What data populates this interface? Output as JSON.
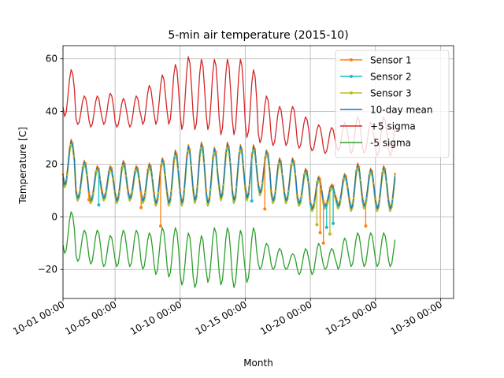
{
  "chart_data": {
    "type": "line",
    "title": "5-min air temperature (2015-10)",
    "xlabel": "Month",
    "ylabel": "Temperature [C]",
    "xlim": [
      "2015-10-01T00:00",
      "2015-10-31T00:00"
    ],
    "ylim": [
      -31,
      65
    ],
    "y_ticks": [
      -20,
      0,
      20,
      40,
      60
    ],
    "x_ticks": [
      "2015-10-01T00:00",
      "2015-10-05T00:00",
      "2015-10-10T00:00",
      "2015-10-15T00:00",
      "2015-10-20T00:00",
      "2015-10-25T00:00",
      "2015-10-30T00:00"
    ],
    "x_tick_labels": [
      "10-01 00:00",
      "10-05 00:00",
      "10-10 00:00",
      "10-15 00:00",
      "10-20 00:00",
      "10-25 00:00",
      "10-30 00:00"
    ],
    "grid": true,
    "legend_position": "top-right",
    "series_style_defaults": {
      "sampled_every_hours": 3
    },
    "series": [
      {
        "name": "Sensor 1",
        "color": "#ff7f0e",
        "marker": "circle",
        "spikes": [
          [
            "2015-10-03T00:00",
            6.5
          ],
          [
            "2015-10-07T00:00",
            3.5
          ],
          [
            "2015-10-08T12:00",
            -3.5
          ],
          [
            "2015-10-16T12:00",
            3
          ],
          [
            "2015-10-20T18:00",
            -6
          ],
          [
            "2015-10-21T00:00",
            -10
          ],
          [
            "2015-10-24T06:00",
            -3.5
          ]
        ]
      },
      {
        "name": "Sensor 2",
        "color": "#17becf",
        "marker": "circle",
        "spikes": [
          [
            "2015-10-03T18:00",
            4.5
          ],
          [
            "2015-10-15T12:00",
            6
          ],
          [
            "2015-10-21T06:00",
            -4
          ],
          [
            "2015-10-21T18:00",
            -2.5
          ]
        ]
      },
      {
        "name": "Sensor 3",
        "color": "#bcbd22",
        "marker": "circle",
        "spikes": [
          [
            "2015-10-20T12:00",
            -3
          ],
          [
            "2015-10-21T12:00",
            -6.5
          ]
        ]
      },
      {
        "name": "10-day mean",
        "color": "#1f77b4",
        "marker": "none",
        "spikes": []
      },
      {
        "name": "+5 sigma",
        "color": "#d62728",
        "marker": "none",
        "spikes": []
      },
      {
        "name": "-5 sigma",
        "color": "#2ca02c",
        "marker": "none",
        "spikes": []
      }
    ],
    "daily_profile": {
      "dates": [
        "2015-10-01",
        "2015-10-02",
        "2015-10-03",
        "2015-10-04",
        "2015-10-05",
        "2015-10-06",
        "2015-10-07",
        "2015-10-08",
        "2015-10-09",
        "2015-10-10",
        "2015-10-11",
        "2015-10-12",
        "2015-10-13",
        "2015-10-14",
        "2015-10-15",
        "2015-10-16",
        "2015-10-17",
        "2015-10-18",
        "2015-10-19",
        "2015-10-20",
        "2015-10-21",
        "2015-10-22",
        "2015-10-23",
        "2015-10-24",
        "2015-10-25"
      ],
      "sensor_high": [
        29,
        21,
        19,
        19,
        21,
        19,
        20,
        22,
        25,
        27,
        28,
        26,
        28,
        27,
        27,
        25,
        22,
        22,
        18,
        15,
        12,
        16,
        20,
        18,
        19
      ],
      "sensor_low": [
        12,
        7,
        6,
        7,
        6,
        7,
        6,
        5,
        5,
        5,
        6,
        5,
        7,
        6,
        7,
        9,
        6,
        6,
        5,
        3,
        4,
        4,
        3,
        4,
        3
      ],
      "upper_high": [
        56,
        46,
        46,
        47,
        45,
        46,
        50,
        54,
        58,
        61,
        60,
        60,
        60,
        60,
        56,
        46,
        42,
        42,
        38,
        35,
        34,
        36,
        38,
        36,
        38
      ],
      "upper_low": [
        38,
        35,
        34,
        35,
        34,
        34,
        35,
        35,
        35,
        33,
        33,
        33,
        31,
        31,
        30,
        28,
        27,
        27,
        26,
        25,
        24,
        25,
        24,
        24,
        23
      ],
      "lower_high": [
        2,
        -5,
        -5,
        -7,
        -5,
        -5,
        -6,
        -4,
        -4,
        -6,
        -7,
        -4,
        -4,
        -5,
        -4,
        -10,
        -12,
        -14,
        -12,
        -10,
        -12,
        -8,
        -6,
        -6,
        -6
      ],
      "lower_low": [
        -14,
        -17,
        -18,
        -19,
        -19,
        -19,
        -20,
        -22,
        -23,
        -26,
        -27,
        -25,
        -26,
        -27,
        -25,
        -20,
        -20,
        -20,
        -22,
        -22,
        -20,
        -20,
        -19,
        -19,
        -19
      ]
    },
    "data_end": "2015-10-26T12:00"
  }
}
